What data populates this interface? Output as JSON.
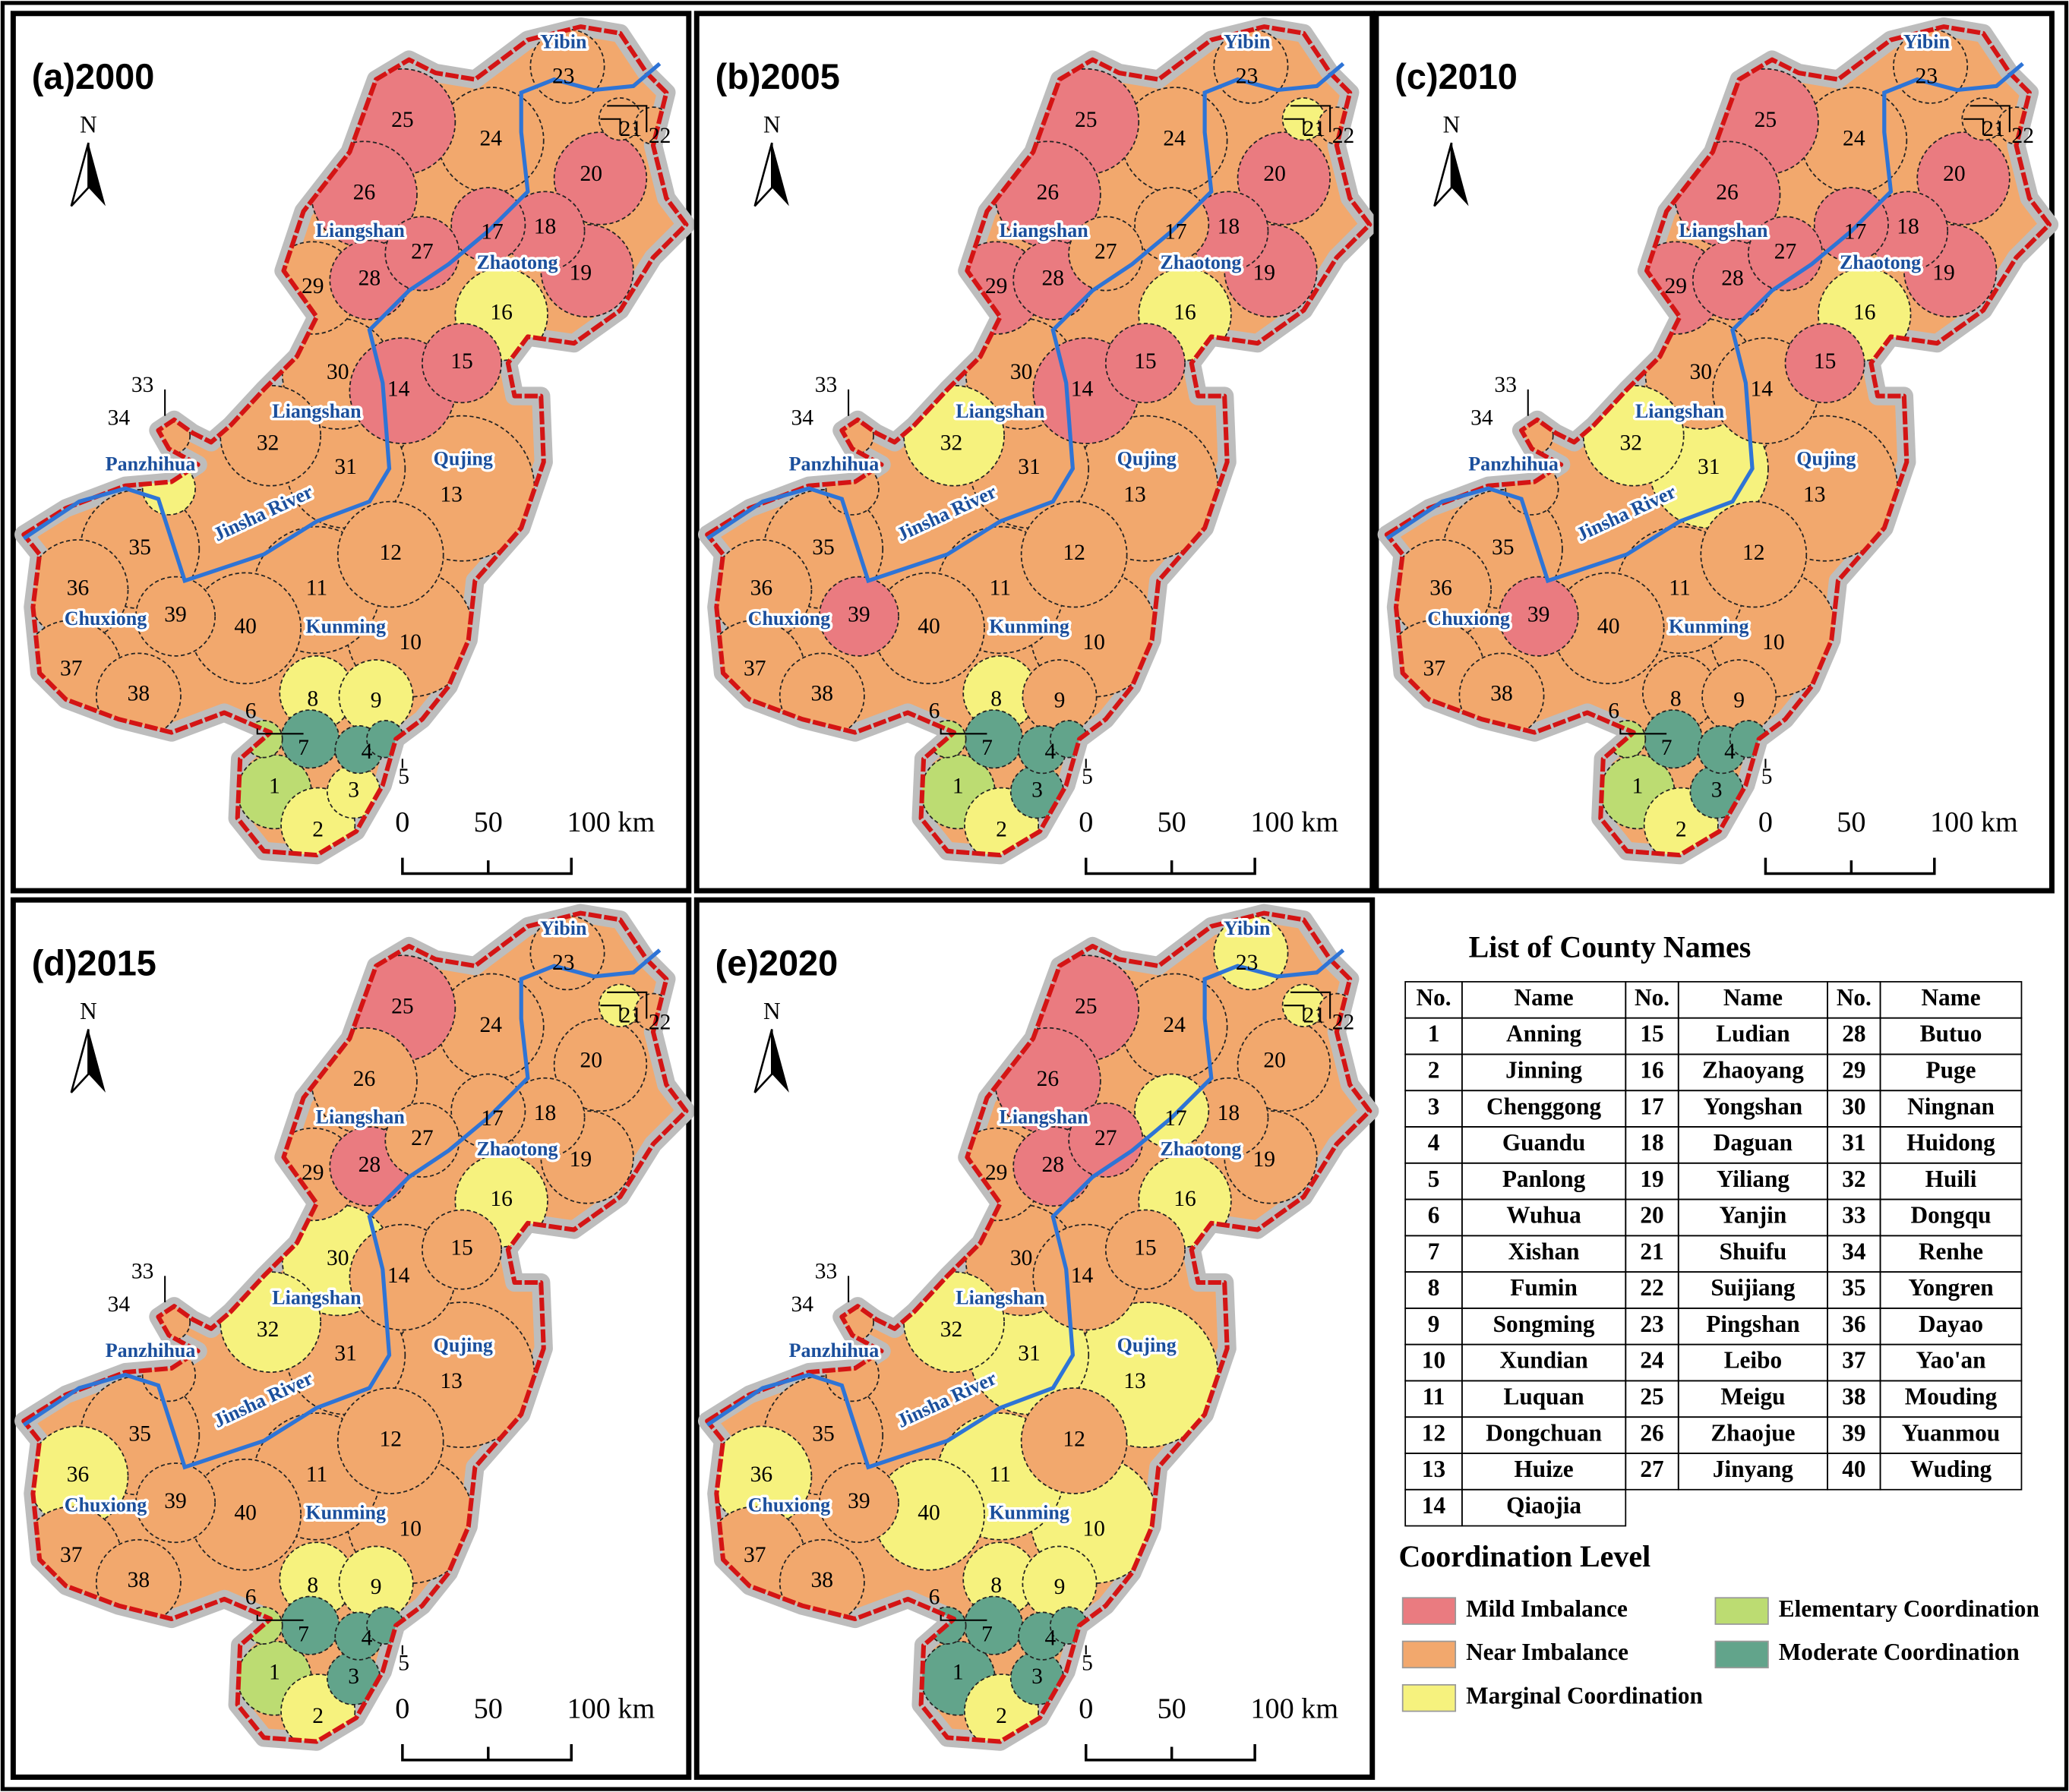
{
  "maps": [
    {
      "title": "(a)2000",
      "levels": [
        3,
        2,
        2,
        4,
        4,
        3,
        4,
        2,
        2,
        1,
        1,
        1,
        1,
        0,
        0,
        2,
        0,
        0,
        0,
        0,
        1,
        1,
        1,
        1,
        0,
        0,
        0,
        0,
        1,
        1,
        1,
        1,
        1,
        2,
        1,
        1,
        1,
        1,
        1,
        1
      ]
    },
    {
      "title": "(b)2005",
      "levels": [
        3,
        2,
        4,
        4,
        4,
        3,
        4,
        2,
        1,
        1,
        1,
        1,
        1,
        0,
        0,
        2,
        1,
        0,
        0,
        0,
        2,
        1,
        1,
        1,
        0,
        0,
        1,
        0,
        0,
        1,
        1,
        2,
        1,
        1,
        1,
        1,
        1,
        1,
        0,
        1
      ]
    },
    {
      "title": "(c)2010",
      "levels": [
        3,
        2,
        4,
        4,
        4,
        3,
        4,
        1,
        1,
        1,
        1,
        1,
        1,
        1,
        0,
        2,
        0,
        0,
        0,
        0,
        1,
        1,
        1,
        1,
        0,
        0,
        0,
        0,
        0,
        1,
        2,
        2,
        1,
        1,
        1,
        1,
        1,
        1,
        0,
        1
      ]
    },
    {
      "title": "(d)2015",
      "levels": [
        3,
        2,
        4,
        4,
        4,
        3,
        4,
        2,
        2,
        1,
        1,
        1,
        1,
        1,
        1,
        2,
        1,
        1,
        1,
        1,
        2,
        1,
        1,
        1,
        0,
        1,
        1,
        0,
        1,
        2,
        1,
        2,
        1,
        1,
        1,
        2,
        1,
        1,
        1,
        1
      ]
    },
    {
      "title": "(e)2020",
      "levels": [
        4,
        2,
        4,
        4,
        4,
        4,
        4,
        2,
        2,
        2,
        2,
        1,
        2,
        1,
        1,
        2,
        2,
        1,
        1,
        1,
        2,
        1,
        2,
        1,
        0,
        0,
        0,
        0,
        1,
        1,
        2,
        2,
        1,
        1,
        1,
        2,
        1,
        1,
        1,
        2
      ]
    }
  ],
  "region_labels": [
    "Yibin",
    "Liangshan",
    "Zhaotong",
    "Liangshan",
    "Panzhihua",
    "Jinsha River",
    "Qujing",
    "Chuxiong",
    "Kunming"
  ],
  "north": "N",
  "scale_labels": [
    "0",
    "50",
    "100 km"
  ],
  "table": {
    "title": "List of County Names",
    "header": [
      "No.",
      "Name"
    ],
    "counties": [
      {
        "no": "1",
        "name": "Anning"
      },
      {
        "no": "2",
        "name": "Jinning"
      },
      {
        "no": "3",
        "name": "Chenggong"
      },
      {
        "no": "4",
        "name": "Guandu"
      },
      {
        "no": "5",
        "name": "Panlong"
      },
      {
        "no": "6",
        "name": "Wuhua"
      },
      {
        "no": "7",
        "name": "Xishan"
      },
      {
        "no": "8",
        "name": "Fumin"
      },
      {
        "no": "9",
        "name": "Songming"
      },
      {
        "no": "10",
        "name": "Xundian"
      },
      {
        "no": "11",
        "name": "Luquan"
      },
      {
        "no": "12",
        "name": "Dongchuan"
      },
      {
        "no": "13",
        "name": "Huize"
      },
      {
        "no": "14",
        "name": "Qiaojia"
      },
      {
        "no": "15",
        "name": "Ludian"
      },
      {
        "no": "16",
        "name": "Zhaoyang"
      },
      {
        "no": "17",
        "name": "Yongshan"
      },
      {
        "no": "18",
        "name": "Daguan"
      },
      {
        "no": "19",
        "name": "Yiliang"
      },
      {
        "no": "20",
        "name": "Yanjin"
      },
      {
        "no": "21",
        "name": "Shuifu"
      },
      {
        "no": "22",
        "name": "Suijiang"
      },
      {
        "no": "23",
        "name": "Pingshan"
      },
      {
        "no": "24",
        "name": "Leibo"
      },
      {
        "no": "25",
        "name": "Meigu"
      },
      {
        "no": "26",
        "name": "Zhaojue"
      },
      {
        "no": "27",
        "name": "Jinyang"
      },
      {
        "no": "28",
        "name": "Butuo"
      },
      {
        "no": "29",
        "name": "Puge"
      },
      {
        "no": "30",
        "name": "Ningnan"
      },
      {
        "no": "31",
        "name": "Huidong"
      },
      {
        "no": "32",
        "name": "Huili"
      },
      {
        "no": "33",
        "name": "Dongqu"
      },
      {
        "no": "34",
        "name": "Renhe"
      },
      {
        "no": "35",
        "name": "Yongren"
      },
      {
        "no": "36",
        "name": "Dayao"
      },
      {
        "no": "37",
        "name": "Yao'an"
      },
      {
        "no": "38",
        "name": "Mouding"
      },
      {
        "no": "39",
        "name": "Yuanmou"
      },
      {
        "no": "40",
        "name": "Wuding"
      }
    ]
  },
  "legend": {
    "title": "Coordination Level",
    "items": [
      {
        "label": "Mild Imbalance",
        "color": "#ea7b80"
      },
      {
        "label": "Near Imbalance",
        "color": "#f2a86d"
      },
      {
        "label": "Marginal Coordination",
        "color": "#f6f27e"
      },
      {
        "label": "Elementary Coordination",
        "color": "#bcdc72"
      },
      {
        "label": "Moderate Coordination",
        "color": "#62a48b"
      }
    ]
  }
}
